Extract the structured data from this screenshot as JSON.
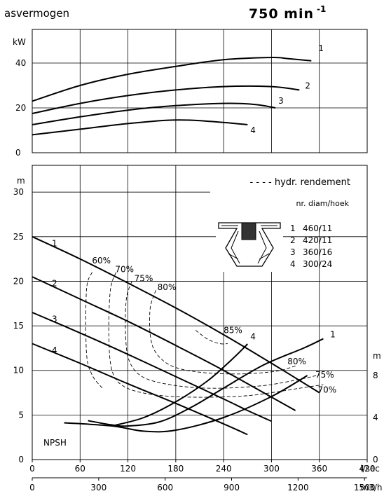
{
  "header": {
    "title_left": "asvermogen",
    "title_right_base": "750 min",
    "title_right_sup": "-1"
  },
  "chart_data": [
    {
      "type": "line",
      "name": "power",
      "ylabel": "kW",
      "xlim": [
        0,
        420
      ],
      "ylim": [
        0,
        55
      ],
      "y_ticks": [
        0,
        20,
        40
      ],
      "series": [
        {
          "name": "1",
          "x": [
            0,
            60,
            120,
            180,
            240,
            300,
            320,
            350
          ],
          "y": [
            23,
            30,
            35,
            38.5,
            41.5,
            42.5,
            42,
            41
          ]
        },
        {
          "name": "2",
          "x": [
            0,
            60,
            120,
            180,
            240,
            300,
            335
          ],
          "y": [
            17.5,
            22,
            25.5,
            28,
            29.5,
            29.5,
            28
          ]
        },
        {
          "name": "3",
          "x": [
            0,
            60,
            120,
            180,
            240,
            280,
            305
          ],
          "y": [
            12.5,
            16,
            19,
            21,
            22,
            21.5,
            20
          ]
        },
        {
          "name": "4",
          "x": [
            0,
            60,
            120,
            170,
            200,
            240,
            270
          ],
          "y": [
            8,
            10.5,
            13,
            14.5,
            14.5,
            13.5,
            12.5
          ]
        }
      ]
    },
    {
      "type": "line",
      "name": "head",
      "ylabel": "m",
      "xlabel": "l/sec",
      "xlabel2": "m3/h",
      "xlim": [
        0,
        420
      ],
      "ylim": [
        0,
        33
      ],
      "y_ticks": [
        0,
        5,
        10,
        15,
        20,
        25,
        30
      ],
      "x_ticks": [
        0,
        60,
        120,
        180,
        240,
        300,
        360,
        420
      ],
      "x_ticks2": [
        0,
        300,
        600,
        900,
        1200,
        1500
      ],
      "y2_ticks": [
        0,
        4,
        8
      ],
      "y2_label": "m",
      "series": [
        {
          "name": "1",
          "x": [
            0,
            60,
            120,
            180,
            240,
            300,
            360
          ],
          "y": [
            25,
            22.5,
            19.8,
            17,
            14,
            10.8,
            7.5
          ]
        },
        {
          "name": "2",
          "x": [
            0,
            60,
            120,
            180,
            240,
            300,
            330
          ],
          "y": [
            20.5,
            18,
            15.5,
            12.8,
            10,
            7,
            5.5
          ]
        },
        {
          "name": "3",
          "x": [
            0,
            60,
            120,
            180,
            240,
            270,
            300
          ],
          "y": [
            16.5,
            14.2,
            11.8,
            9.3,
            6.8,
            5.5,
            4.3
          ]
        },
        {
          "name": "4",
          "x": [
            0,
            60,
            120,
            180,
            240,
            270
          ],
          "y": [
            13,
            10.8,
            8.5,
            6.3,
            4,
            2.8
          ]
        }
      ],
      "npsh_label": "NPSH",
      "npsh_series": [
        {
          "name": "npsh-main",
          "x": [
            40,
            100,
            140,
            180,
            240,
            300,
            345
          ],
          "y": [
            3.5,
            3.2,
            2.7,
            2.8,
            4.0,
            6.0,
            8.0
          ]
        },
        {
          "name": "npsh-1",
          "x": [
            70,
            100,
            120,
            160,
            200,
            240,
            290,
            340,
            365
          ],
          "y": [
            3.7,
            3.3,
            3.2,
            3.6,
            5.0,
            6.8,
            9.0,
            10.6,
            11.5
          ]
        },
        {
          "name": "npsh-4",
          "x": [
            100,
            140,
            180,
            220,
            250,
            270
          ],
          "y": [
            3.2,
            4.0,
            5.5,
            7.5,
            9.5,
            11.0
          ]
        }
      ],
      "npsh_labels": [
        {
          "text": "1",
          "x": 370,
          "y": 11.5
        },
        {
          "text": "4",
          "x": 270,
          "y": 11.3
        }
      ],
      "efficiency_legend": "- - - - hydr. rendement",
      "efficiency_curves": [
        {
          "label": "60%",
          "x": [
            75,
            68,
            68,
            75,
            88
          ],
          "y": [
            21,
            19,
            12,
            9.5,
            8
          ]
        },
        {
          "label": "70%",
          "x": [
            105,
            98,
            96,
            100,
            115,
            150,
            200,
            260,
            300,
            335,
            365
          ],
          "y": [
            21,
            19,
            14,
            10,
            8.2,
            7.3,
            7.0,
            7.1,
            7.5,
            8.0,
            8.4
          ]
        },
        {
          "label": "75%",
          "x": [
            125,
            118,
            117,
            122,
            140,
            180,
            230,
            290,
            335,
            360
          ],
          "y": [
            20,
            18,
            14,
            11,
            9.2,
            8.3,
            8.0,
            8.3,
            9.0,
            9.5
          ]
        },
        {
          "label": "80%",
          "x": [
            155,
            148,
            148,
            155,
            175,
            210,
            260,
            305,
            330
          ],
          "y": [
            19,
            17,
            14,
            12,
            10.5,
            9.8,
            9.6,
            9.9,
            10.5
          ]
        },
        {
          "label": "85%",
          "x": [
            205,
            220,
            235,
            245
          ],
          "y": [
            14.5,
            13.5,
            13.0,
            13.0
          ]
        }
      ],
      "efficiency_label_positions": [
        {
          "label": "60%",
          "x": 75,
          "y": 22
        },
        {
          "label": "70%",
          "x": 104,
          "y": 21
        },
        {
          "label": "75%",
          "x": 128,
          "y": 20
        },
        {
          "label": "80%",
          "x": 157,
          "y": 19
        },
        {
          "label": "85%",
          "x": 240,
          "y": 14.2
        },
        {
          "label": "80%",
          "x": 320,
          "y": 10.7
        },
        {
          "label": "75%",
          "x": 355,
          "y": 9.2
        },
        {
          "label": "70%",
          "x": 358,
          "y": 7.5
        }
      ],
      "table_header": "nr. diam/hoek",
      "table_rows": [
        {
          "nr": "1",
          "spec": "460/11"
        },
        {
          "nr": "2",
          "spec": "420/11"
        },
        {
          "nr": "3",
          "spec": "360/16"
        },
        {
          "nr": "4",
          "spec": "300/24"
        }
      ]
    }
  ]
}
